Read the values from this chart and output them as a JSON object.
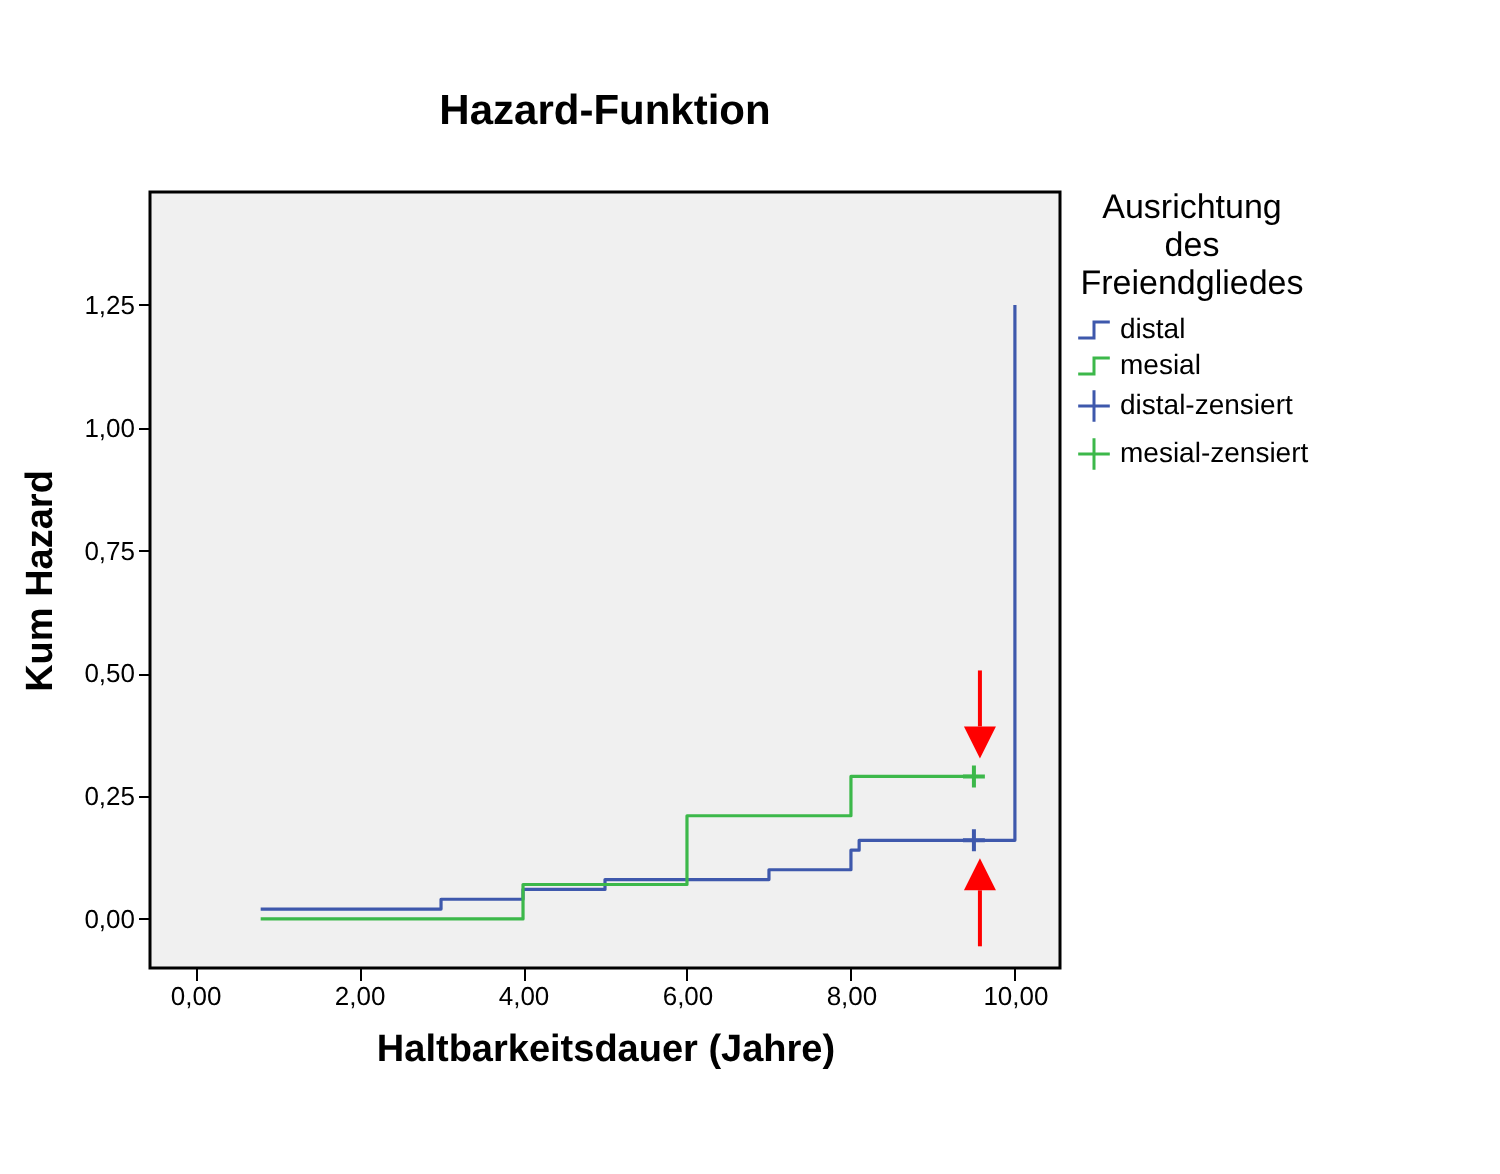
{
  "chart_data": {
    "type": "step",
    "title": "Hazard-Funktion",
    "xlabel": "Haltbarkeitsdauer (Jahre)",
    "ylabel": "Kum Hazard",
    "legend_title": "Ausrichtung des Freiendgliedes",
    "xlim": [
      -0.55,
      10.55
    ],
    "ylim": [
      -0.1,
      1.48
    ],
    "xticks": [
      {
        "value": 0,
        "label": "0,00"
      },
      {
        "value": 2,
        "label": "2,00"
      },
      {
        "value": 4,
        "label": "4,00"
      },
      {
        "value": 6,
        "label": "6,00"
      },
      {
        "value": 8,
        "label": "8,00"
      },
      {
        "value": 10,
        "label": "10,00"
      }
    ],
    "yticks": [
      {
        "value": 0,
        "label": "0,00"
      },
      {
        "value": 0.25,
        "label": "0,25"
      },
      {
        "value": 0.5,
        "label": "0,50"
      },
      {
        "value": 0.75,
        "label": "0,75"
      },
      {
        "value": 1,
        "label": "1,00"
      },
      {
        "value": 1.25,
        "label": "1,25"
      }
    ],
    "grid": false,
    "legend": "right",
    "series": [
      {
        "name": "distal",
        "color": "#3e58ac",
        "x": [
          0.8,
          3,
          4,
          5,
          7,
          8,
          8.1,
          10
        ],
        "values": [
          0.02,
          0.04,
          0.06,
          0.08,
          0.1,
          0.14,
          0.16,
          1.25
        ]
      },
      {
        "name": "mesial",
        "color": "#3cb84a",
        "x": [
          0.8,
          4,
          6,
          8,
          9.5
        ],
        "values": [
          0,
          0.07,
          0.21,
          0.29,
          0.29
        ]
      },
      {
        "name": "distal-zensiert",
        "type": "scatter",
        "marker": "cross",
        "color": "#3e58ac",
        "x": [
          9.5
        ],
        "values": [
          0.16
        ]
      },
      {
        "name": "mesial-zensiert",
        "type": "scatter",
        "marker": "cross",
        "color": "#3cb84a",
        "x": [
          9.5
        ],
        "values": [
          0.29
        ]
      }
    ]
  }
}
